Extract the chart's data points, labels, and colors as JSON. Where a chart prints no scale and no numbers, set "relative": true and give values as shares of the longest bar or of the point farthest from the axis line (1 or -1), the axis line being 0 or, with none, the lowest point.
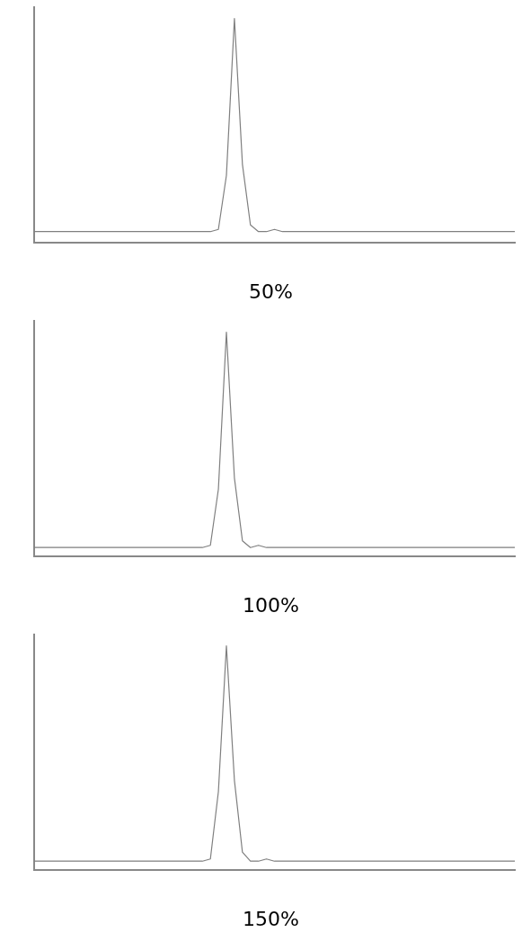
{
  "chart_data": [
    {
      "type": "line",
      "title": "50%",
      "relative": true,
      "grid": false,
      "legend": false,
      "marker": "none",
      "categories": [
        null,
        null,
        null,
        null,
        null,
        null,
        null,
        null,
        null,
        null,
        null,
        null,
        null,
        null,
        null,
        null,
        null,
        null,
        null,
        null,
        null,
        null,
        null,
        null,
        null,
        null,
        null,
        null,
        null,
        null,
        null,
        null,
        null,
        null,
        null,
        null,
        null,
        null,
        null,
        null,
        null,
        null,
        null,
        null,
        null,
        null,
        null,
        null,
        null,
        null,
        null,
        null,
        null,
        null,
        null,
        null,
        null,
        null,
        null,
        null,
        null
      ],
      "series": [
        {
          "color": "#7f7f7f",
          "values": [
            0.05,
            0.05,
            0.05,
            0.05,
            0.05,
            0.05,
            0.05,
            0.05,
            0.05,
            0.05,
            0.05,
            0.05,
            0.05,
            0.05,
            0.05,
            0.05,
            0.05,
            0.05,
            0.05,
            0.05,
            0.05,
            0.05,
            0.05,
            0.06,
            0.3,
            1,
            0.35,
            0.08,
            0.05,
            0.05,
            0.06,
            0.05,
            0.05,
            0.05,
            0.05,
            0.05,
            0.05,
            0.05,
            0.05,
            0.05,
            0.05,
            0.05,
            0.05,
            0.05,
            0.05,
            0.05,
            0.05,
            0.05,
            0.05,
            0.05,
            0.05,
            0.05,
            0.05,
            0.05,
            0.05,
            0.05,
            0.05,
            0.05,
            0.05,
            0.05,
            0.05
          ]
        }
      ]
    },
    {
      "type": "line",
      "title": "100%",
      "relative": true,
      "grid": false,
      "legend": false,
      "marker": "none",
      "categories": [
        null,
        null,
        null,
        null,
        null,
        null,
        null,
        null,
        null,
        null,
        null,
        null,
        null,
        null,
        null,
        null,
        null,
        null,
        null,
        null,
        null,
        null,
        null,
        null,
        null,
        null,
        null,
        null,
        null,
        null,
        null,
        null,
        null,
        null,
        null,
        null,
        null,
        null,
        null,
        null,
        null,
        null,
        null,
        null,
        null,
        null,
        null,
        null,
        null,
        null,
        null,
        null,
        null,
        null,
        null,
        null,
        null,
        null,
        null,
        null,
        null
      ],
      "series": [
        {
          "color": "#7f7f7f",
          "values": [
            0.04,
            0.04,
            0.04,
            0.04,
            0.04,
            0.04,
            0.04,
            0.04,
            0.04,
            0.04,
            0.04,
            0.04,
            0.04,
            0.04,
            0.04,
            0.04,
            0.04,
            0.04,
            0.04,
            0.04,
            0.04,
            0.04,
            0.05,
            0.3,
            1,
            0.35,
            0.07,
            0.04,
            0.05,
            0.04,
            0.04,
            0.04,
            0.04,
            0.04,
            0.04,
            0.04,
            0.04,
            0.04,
            0.04,
            0.04,
            0.04,
            0.04,
            0.04,
            0.04,
            0.04,
            0.04,
            0.04,
            0.04,
            0.04,
            0.04,
            0.04,
            0.04,
            0.04,
            0.04,
            0.04,
            0.04,
            0.04,
            0.04,
            0.04,
            0.04,
            0.04
          ]
        }
      ]
    },
    {
      "type": "line",
      "title": "150%",
      "relative": true,
      "grid": false,
      "legend": false,
      "marker": "none",
      "categories": [
        null,
        null,
        null,
        null,
        null,
        null,
        null,
        null,
        null,
        null,
        null,
        null,
        null,
        null,
        null,
        null,
        null,
        null,
        null,
        null,
        null,
        null,
        null,
        null,
        null,
        null,
        null,
        null,
        null,
        null,
        null,
        null,
        null,
        null,
        null,
        null,
        null,
        null,
        null,
        null,
        null,
        null,
        null,
        null,
        null,
        null,
        null,
        null,
        null,
        null,
        null,
        null,
        null,
        null,
        null,
        null,
        null,
        null,
        null,
        null,
        null
      ],
      "series": [
        {
          "color": "#7f7f7f",
          "values": [
            0.04,
            0.04,
            0.04,
            0.04,
            0.04,
            0.04,
            0.04,
            0.04,
            0.04,
            0.04,
            0.04,
            0.04,
            0.04,
            0.04,
            0.04,
            0.04,
            0.04,
            0.04,
            0.04,
            0.04,
            0.04,
            0.04,
            0.05,
            0.35,
            1,
            0.4,
            0.08,
            0.04,
            0.04,
            0.05,
            0.04,
            0.04,
            0.04,
            0.04,
            0.04,
            0.04,
            0.04,
            0.04,
            0.04,
            0.04,
            0.04,
            0.04,
            0.04,
            0.04,
            0.04,
            0.04,
            0.04,
            0.04,
            0.04,
            0.04,
            0.04,
            0.04,
            0.04,
            0.04,
            0.04,
            0.04,
            0.04,
            0.04,
            0.04,
            0.04,
            0.04
          ]
        }
      ]
    }
  ]
}
